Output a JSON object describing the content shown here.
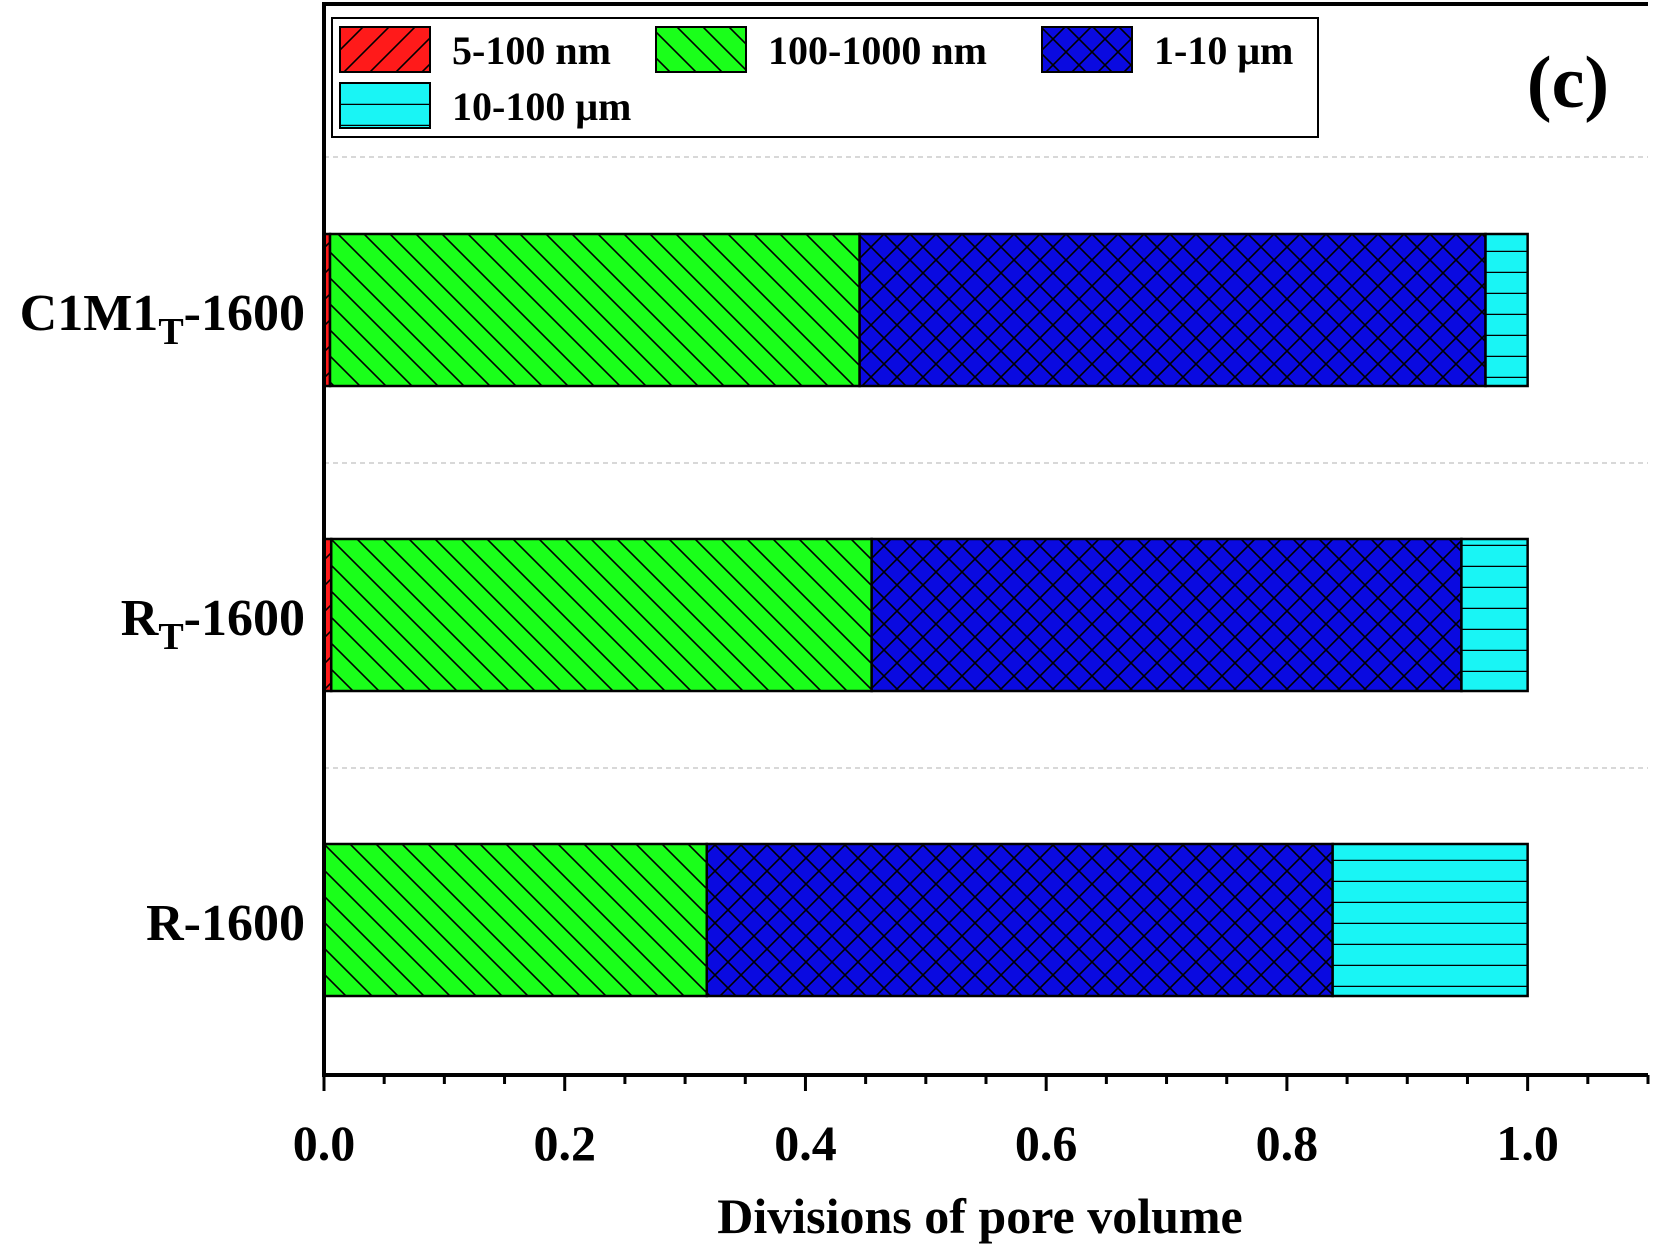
{
  "chart_data": {
    "type": "bar",
    "orientation": "horizontal",
    "stacked": true,
    "panel_label": "(c)",
    "xlabel": "Divisions of pore volume",
    "ylabel": "",
    "xlim": [
      0.0,
      1.1
    ],
    "x_ticks": [
      "0.0",
      "0.2",
      "0.4",
      "0.6",
      "0.8",
      "1.0"
    ],
    "x_tick_values": [
      0.0,
      0.2,
      0.4,
      0.6,
      0.8,
      1.0
    ],
    "categories": [
      {
        "main": "C1M1",
        "sub": "T",
        "suffix": "-1600"
      },
      {
        "main": "R",
        "sub": "T",
        "suffix": "-1600"
      },
      {
        "main": "R-1600",
        "sub": "",
        "suffix": ""
      }
    ],
    "series": [
      {
        "name": "5-100 nm",
        "color": "#ff1a1a",
        "pattern": "diag-up",
        "values": [
          0.005,
          0.006,
          0.0
        ]
      },
      {
        "name": "100-1000 nm",
        "color": "#1aff1a",
        "pattern": "diag-down",
        "values": [
          0.44,
          0.449,
          0.318
        ]
      },
      {
        "name": "1-10 μm",
        "color": "#0a0ae0",
        "pattern": "crosshatch",
        "values": [
          0.52,
          0.49,
          0.52
        ]
      },
      {
        "name": "10-100 μm",
        "color": "#19f5f5",
        "pattern": "horizontal",
        "values": [
          0.035,
          0.055,
          0.162
        ]
      }
    ],
    "legend_position": "top-left",
    "grid": "dashed horizontal separators between categories"
  }
}
